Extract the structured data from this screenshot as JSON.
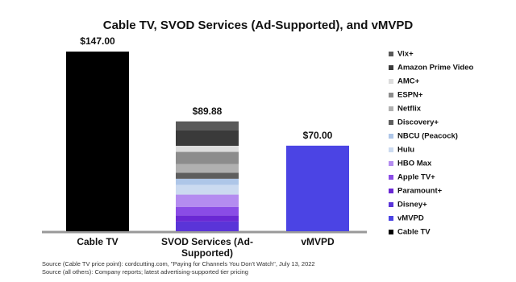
{
  "chart_data": {
    "type": "stacked_bar",
    "title": "Cable TV, SVOD Services (Ad-Supported), and vMVPD",
    "categories": [
      "Cable TV",
      "SVOD Services (Ad-Supported)",
      "vMVPD"
    ],
    "totals": [
      147,
      89.88,
      70
    ],
    "total_labels": [
      "$147.00",
      "$89.88",
      "$70.00"
    ],
    "series": [
      {
        "name": "Vix+",
        "color": "#595959",
        "values": [
          null,
          6.99,
          null
        ]
      },
      {
        "name": "Amazon Prime Video",
        "color": "#3a3a3a",
        "values": [
          null,
          12.99,
          null
        ]
      },
      {
        "name": "AMC+",
        "color": "#dcdcdc",
        "values": [
          null,
          4.99,
          null
        ]
      },
      {
        "name": "ESPN+",
        "color": "#8c8c8c",
        "values": [
          null,
          9.99,
          null
        ]
      },
      {
        "name": "Netflix",
        "color": "#b0b0b0",
        "values": [
          null,
          6.99,
          null
        ]
      },
      {
        "name": "Discovery+",
        "color": "#5e5e5e",
        "values": [
          null,
          4.99,
          null
        ]
      },
      {
        "name": "NBCU (Peacock)",
        "color": "#aec6e8",
        "values": [
          null,
          4.99,
          null
        ]
      },
      {
        "name": "Hulu",
        "color": "#cbdaf0",
        "values": [
          null,
          7.99,
          null
        ]
      },
      {
        "name": "HBO Max",
        "color": "#b48cf0",
        "values": [
          null,
          9.99,
          null
        ]
      },
      {
        "name": "Apple TV+",
        "color": "#8a4ce6",
        "values": [
          null,
          6.99,
          null
        ]
      },
      {
        "name": "Paramount+",
        "color": "#6a28d4",
        "values": [
          null,
          4.99,
          null
        ]
      },
      {
        "name": "Disney+",
        "color": "#5a34d8",
        "values": [
          null,
          7.99,
          null
        ]
      },
      {
        "name": "vMVPD",
        "color": "#4b44e4",
        "values": [
          null,
          null,
          70
        ]
      },
      {
        "name": "Cable TV",
        "color": "#000000",
        "values": [
          147,
          null,
          null
        ]
      }
    ],
    "notes": [
      "Source (Cable TV price point): cordcutting.com, \"Paying for Channels You Don't Watch\", July 13, 2022",
      "Source (all others): Company reports; latest advertising-supported tier pricing"
    ]
  }
}
